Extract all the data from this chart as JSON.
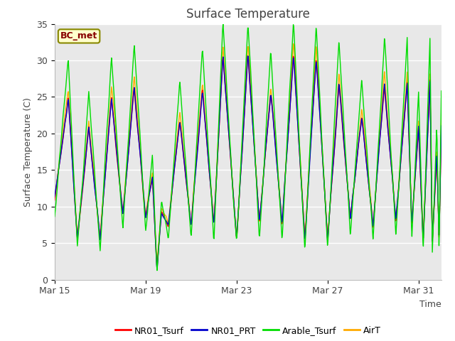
{
  "title": "Surface Temperature",
  "xlabel": "Time",
  "ylabel": "Surface Temperature (C)",
  "ylim": [
    0,
    35
  ],
  "xlim_days": [
    0,
    17
  ],
  "x_tick_positions": [
    0,
    4,
    8,
    12,
    16
  ],
  "x_tick_labels": [
    "Mar 15",
    "Mar 19",
    "Mar 23",
    "Mar 27",
    "Mar 31"
  ],
  "y_ticks": [
    0,
    5,
    10,
    15,
    20,
    25,
    30,
    35
  ],
  "legend_labels": [
    "NR01_Tsurf",
    "NR01_PRT",
    "Arable_Tsurf",
    "AirT"
  ],
  "legend_colors": [
    "#ff0000",
    "#0000cc",
    "#00dd00",
    "#ffaa00"
  ],
  "annotation_text": "BC_met",
  "annotation_bg": "#ffffcc",
  "annotation_border": "#888800",
  "annotation_text_color": "#880000",
  "bg_inner": "#e8e8e8",
  "bg_outer": "#ffffff",
  "grid_color": "#ffffff",
  "title_color": "#444444",
  "axis_label_color": "#444444",
  "tick_label_color": "#444444",
  "nr01_peaks": [
    25.0,
    21.0,
    25.0,
    26.5,
    14.0,
    9.5,
    22.0,
    26.0,
    30.5,
    31.0,
    25.5,
    31.0,
    30.5,
    27.0,
    22.5,
    27.0,
    27.0,
    21.0,
    27.0,
    17.5,
    21.0,
    24.0,
    8.0
  ],
  "nr01_mins": [
    11.0,
    5.5,
    5.5,
    9.0,
    8.5,
    1.5,
    7.5,
    7.5,
    7.5,
    5.5,
    7.5,
    7.5,
    5.5,
    5.5,
    8.0,
    7.5,
    8.0,
    7.5,
    5.5,
    5.0,
    5.5,
    5.5,
    7.5
  ],
  "nr01_peak_days": [
    0.6,
    1.5,
    2.5,
    3.5,
    4.3,
    4.7,
    5.5,
    6.5,
    7.4,
    8.5,
    9.5,
    10.5,
    11.5,
    12.5,
    13.5,
    14.5,
    15.5,
    16.0,
    16.5,
    16.8,
    17.0,
    17.2,
    17.4
  ],
  "nr01_min_days": [
    0.0,
    1.0,
    2.0,
    3.0,
    4.0,
    4.5,
    5.0,
    6.0,
    7.0,
    8.0,
    9.0,
    10.0,
    11.0,
    12.0,
    13.0,
    14.0,
    15.0,
    15.7,
    16.2,
    16.6,
    16.9,
    17.1,
    17.3
  ]
}
